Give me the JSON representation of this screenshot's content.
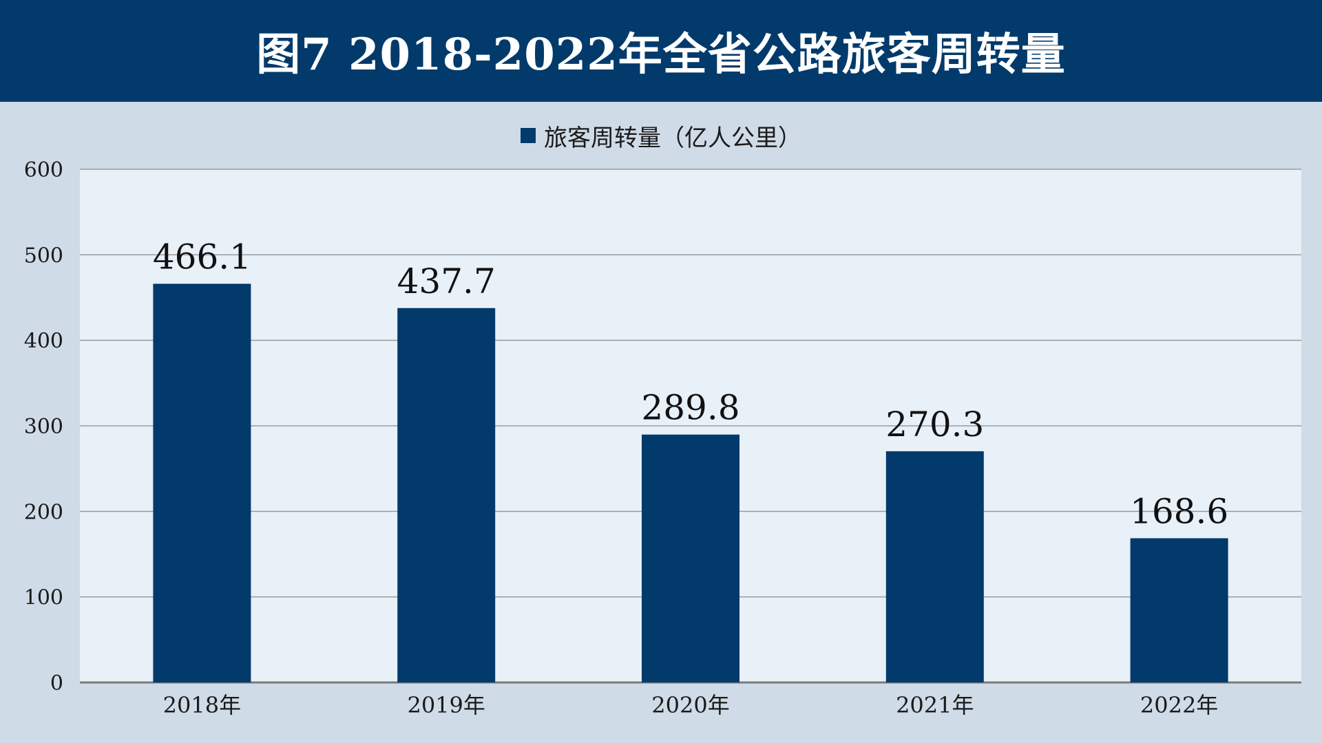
{
  "title": "图7  2018-2022年全省公路旅客周转量",
  "legend": {
    "label": "旅客周转量（亿人公里）"
  },
  "colors": {
    "bar": "#023a6b",
    "plot_bg": "#e8f0f8",
    "page_bg": "#cfdbe7",
    "grid": "#9a9a9a"
  },
  "chart_data": {
    "type": "bar",
    "title": "图7  2018-2022年全省公路旅客周转量",
    "categories": [
      "2018年",
      "2019年",
      "2020年",
      "2021年",
      "2022年"
    ],
    "series": [
      {
        "name": "旅客周转量（亿人公里）",
        "values": [
          466.1,
          437.7,
          289.8,
          270.3,
          168.6
        ]
      }
    ],
    "data_labels": [
      "466.1",
      "437.7",
      "289.8",
      "270.3",
      "168.6"
    ],
    "y_ticks": [
      "0",
      "100",
      "200",
      "300",
      "400",
      "500",
      "600"
    ],
    "xlabel": "",
    "ylabel": "",
    "ylim": [
      0,
      600
    ],
    "grid": true,
    "legend_position": "top-center"
  }
}
